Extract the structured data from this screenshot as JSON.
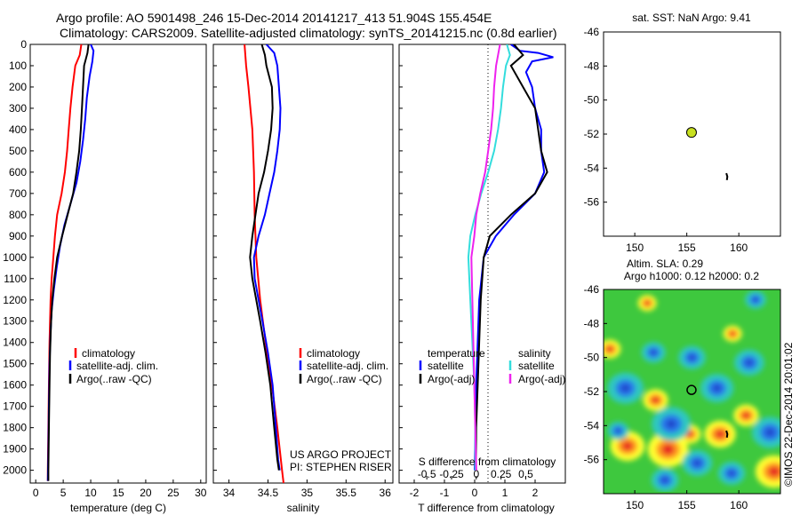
{
  "header": {
    "line1": "Argo profile: AO 5901498_246 15-Dec-2014 20141217_413 51.904S 155.454E",
    "line2": "Climatology: CARS2009. Satellite-adjusted climatology: synTS_20141215.nc (0.8d earlier)"
  },
  "credit": {
    "line1": "US ARGO PROJECT",
    "line2": "PI: STEPHEN RISER"
  },
  "watermark": "©IMOS 22-Dec-2014 20:01:02",
  "colors": {
    "red": "#ff0000",
    "blue": "#0000ff",
    "black": "#000000",
    "cyan": "#33dddd",
    "magenta": "#ee22ee",
    "green": "#3ec83e",
    "yellow": "#ffff33",
    "marker": "#c8e020"
  },
  "chart_data": [
    {
      "type": "line",
      "xlabel": "temperature (deg C)",
      "ylabel": "",
      "xlim": [
        -1,
        31
      ],
      "ylim": [
        2060,
        0
      ],
      "xticks": [
        "0",
        "5",
        "10",
        "15",
        "20",
        "25",
        "30"
      ],
      "yticks": [
        "0",
        "100",
        "200",
        "300",
        "400",
        "500",
        "600",
        "700",
        "800",
        "900",
        "1000",
        "1100",
        "1200",
        "1300",
        "1400",
        "1500",
        "1600",
        "1700",
        "1800",
        "1900",
        "2000"
      ],
      "legend": [
        "climatology",
        "satellite-adj. clim.",
        "Argo(..raw -QC)"
      ],
      "series": [
        {
          "name": "climatology",
          "color": "red",
          "points": [
            [
              8.3,
              0
            ],
            [
              8.0,
              50
            ],
            [
              7.2,
              100
            ],
            [
              6.7,
              200
            ],
            [
              6.3,
              300
            ],
            [
              6.0,
              400
            ],
            [
              5.7,
              500
            ],
            [
              5.3,
              600
            ],
            [
              4.7,
              700
            ],
            [
              3.9,
              800
            ],
            [
              3.5,
              900
            ],
            [
              3.2,
              1000
            ],
            [
              2.9,
              1100
            ],
            [
              2.7,
              1200
            ],
            [
              2.6,
              1300
            ],
            [
              2.5,
              1400
            ],
            [
              2.4,
              1600
            ],
            [
              2.3,
              1800
            ],
            [
              2.2,
              2000
            ],
            [
              2.2,
              2050
            ]
          ]
        },
        {
          "name": "satellite-adj. clim.",
          "color": "blue",
          "points": [
            [
              10.0,
              0
            ],
            [
              10.5,
              30
            ],
            [
              10.3,
              80
            ],
            [
              9.8,
              150
            ],
            [
              9.3,
              250
            ],
            [
              9.0,
              350
            ],
            [
              8.6,
              450
            ],
            [
              8.1,
              550
            ],
            [
              7.4,
              650
            ],
            [
              6.3,
              750
            ],
            [
              5.2,
              850
            ],
            [
              4.4,
              950
            ],
            [
              3.8,
              1050
            ],
            [
              3.3,
              1150
            ],
            [
              2.9,
              1250
            ],
            [
              2.7,
              1350
            ],
            [
              2.5,
              1500
            ],
            [
              2.4,
              1700
            ],
            [
              2.3,
              1900
            ],
            [
              2.2,
              2050
            ]
          ]
        },
        {
          "name": "Argo(..raw -QC)",
          "color": "black",
          "points": [
            [
              9.6,
              0
            ],
            [
              9.4,
              40
            ],
            [
              8.8,
              100
            ],
            [
              8.6,
              200
            ],
            [
              8.4,
              300
            ],
            [
              8.2,
              400
            ],
            [
              7.9,
              500
            ],
            [
              7.4,
              600
            ],
            [
              6.8,
              700
            ],
            [
              5.8,
              800
            ],
            [
              4.8,
              900
            ],
            [
              3.9,
              1000
            ],
            [
              3.4,
              1100
            ],
            [
              3.0,
              1200
            ],
            [
              2.8,
              1300
            ],
            [
              2.6,
              1450
            ],
            [
              2.5,
              1600
            ],
            [
              2.4,
              1800
            ],
            [
              2.3,
              2000
            ],
            [
              2.3,
              2050
            ]
          ]
        }
      ]
    },
    {
      "type": "line",
      "xlabel": "salinity",
      "ylabel": "",
      "xlim": [
        33.8,
        36.1
      ],
      "ylim": [
        2060,
        0
      ],
      "xticks": [
        "34",
        "34.5",
        "35",
        "35.5",
        "36"
      ],
      "legend": [
        "climatology",
        "satellite-adj. clim.",
        "Argo(..raw -QC)"
      ],
      "series": [
        {
          "name": "climatology",
          "color": "red",
          "points": [
            [
              34.2,
              0
            ],
            [
              34.22,
              100
            ],
            [
              34.25,
              200
            ],
            [
              34.3,
              400
            ],
            [
              34.32,
              600
            ],
            [
              34.33,
              800
            ],
            [
              34.34,
              900
            ],
            [
              34.35,
              1000
            ],
            [
              34.4,
              1200
            ],
            [
              34.47,
              1400
            ],
            [
              34.55,
              1600
            ],
            [
              34.62,
              1800
            ],
            [
              34.68,
              2000
            ],
            [
              34.7,
              2060
            ]
          ]
        },
        {
          "name": "satellite-adj. clim.",
          "color": "blue",
          "points": [
            [
              34.48,
              0
            ],
            [
              34.58,
              40
            ],
            [
              34.62,
              100
            ],
            [
              34.64,
              200
            ],
            [
              34.66,
              300
            ],
            [
              34.65,
              400
            ],
            [
              34.62,
              500
            ],
            [
              34.58,
              600
            ],
            [
              34.52,
              700
            ],
            [
              34.46,
              800
            ],
            [
              34.38,
              900
            ],
            [
              34.32,
              1000
            ],
            [
              34.33,
              1100
            ],
            [
              34.38,
              1200
            ],
            [
              34.43,
              1300
            ],
            [
              34.5,
              1450
            ],
            [
              34.56,
              1600
            ],
            [
              34.6,
              1800
            ],
            [
              34.63,
              1950
            ],
            [
              34.65,
              2000
            ]
          ]
        },
        {
          "name": "Argo(..raw -QC)",
          "color": "black",
          "points": [
            [
              34.42,
              0
            ],
            [
              34.46,
              50
            ],
            [
              34.48,
              100
            ],
            [
              34.55,
              200
            ],
            [
              34.56,
              300
            ],
            [
              34.54,
              400
            ],
            [
              34.5,
              500
            ],
            [
              34.45,
              600
            ],
            [
              34.38,
              700
            ],
            [
              34.34,
              800
            ],
            [
              34.3,
              900
            ],
            [
              34.27,
              1000
            ],
            [
              34.3,
              1100
            ],
            [
              34.35,
              1200
            ],
            [
              34.4,
              1300
            ],
            [
              34.47,
              1450
            ],
            [
              34.53,
              1600
            ],
            [
              34.58,
              1800
            ],
            [
              34.62,
              1950
            ],
            [
              34.64,
              2000
            ]
          ]
        }
      ]
    },
    {
      "type": "line",
      "xlabel": "T difference from climatology",
      "x2label": "S difference from climatology",
      "xlim": [
        -2.5,
        3.0
      ],
      "x2lim": [
        -0.78,
        0.9
      ],
      "ylim": [
        2060,
        0
      ],
      "xticks": [
        "-2",
        "-1",
        "0",
        "1",
        "2"
      ],
      "x2ticks": [
        "-0.5",
        "-0.25",
        "0",
        "0.25",
        "0.5"
      ],
      "legend_temperature_title": "temperature",
      "legend_salinity_title": "salinity",
      "legend_items": [
        "satellite",
        "Argo(-adj)",
        "satellite",
        "Argo(-adj)"
      ],
      "series": [
        {
          "name": "satellite",
          "group": "temperature",
          "color": "blue",
          "axis": "T",
          "points": [
            [
              1.2,
              0
            ],
            [
              1.5,
              30
            ],
            [
              2.1,
              40
            ],
            [
              2.6,
              60
            ],
            [
              1.9,
              80
            ],
            [
              1.7,
              130
            ],
            [
              1.9,
              200
            ],
            [
              2.0,
              300
            ],
            [
              2.2,
              400
            ],
            [
              2.2,
              500
            ],
            [
              2.3,
              600
            ],
            [
              2.0,
              700
            ],
            [
              1.3,
              800
            ],
            [
              0.7,
              900
            ],
            [
              0.3,
              1000
            ],
            [
              0.15,
              1200
            ],
            [
              0.1,
              1400
            ],
            [
              0.05,
              1600
            ],
            [
              0.03,
              1800
            ],
            [
              0.0,
              2000
            ]
          ]
        },
        {
          "name": "Argo(-adj)",
          "group": "temperature",
          "color": "black",
          "axis": "T",
          "points": [
            [
              1.3,
              0
            ],
            [
              1.6,
              50
            ],
            [
              1.2,
              100
            ],
            [
              1.6,
              200
            ],
            [
              2.0,
              300
            ],
            [
              2.1,
              400
            ],
            [
              2.2,
              500
            ],
            [
              2.4,
              600
            ],
            [
              2.0,
              700
            ],
            [
              1.2,
              800
            ],
            [
              0.5,
              900
            ],
            [
              0.3,
              1000
            ],
            [
              0.2,
              1200
            ],
            [
              0.15,
              1400
            ],
            [
              0.1,
              1600
            ],
            [
              0.05,
              1800
            ],
            [
              0.04,
              2000
            ]
          ]
        },
        {
          "name": "satellite",
          "group": "salinity",
          "color": "cyan",
          "axis": "S",
          "points": [
            [
              0.31,
              0
            ],
            [
              0.34,
              50
            ],
            [
              0.3,
              100
            ],
            [
              0.27,
              200
            ],
            [
              0.25,
              300
            ],
            [
              0.22,
              400
            ],
            [
              0.18,
              500
            ],
            [
              0.12,
              600
            ],
            [
              0.05,
              700
            ],
            [
              -0.01,
              800
            ],
            [
              -0.06,
              900
            ],
            [
              -0.08,
              1000
            ],
            [
              -0.06,
              1200
            ],
            [
              -0.04,
              1400
            ],
            [
              -0.02,
              1600
            ],
            [
              -0.01,
              1800
            ],
            [
              -0.01,
              2000
            ]
          ]
        },
        {
          "name": "Argo(-adj)",
          "group": "salinity",
          "color": "magenta",
          "axis": "S",
          "points": [
            [
              0.24,
              0
            ],
            [
              0.22,
              50
            ],
            [
              0.2,
              100
            ],
            [
              0.18,
              200
            ],
            [
              0.17,
              300
            ],
            [
              0.15,
              400
            ],
            [
              0.12,
              500
            ],
            [
              0.09,
              600
            ],
            [
              0.04,
              700
            ],
            [
              0.0,
              800
            ],
            [
              -0.02,
              900
            ],
            [
              -0.05,
              1000
            ],
            [
              -0.04,
              1200
            ],
            [
              -0.03,
              1400
            ],
            [
              -0.02,
              1600
            ],
            [
              -0.01,
              1800
            ],
            [
              0.0,
              2000
            ]
          ]
        }
      ]
    },
    {
      "type": "scatter",
      "title": "sat. SST: NaN Argo: 9.41",
      "xlim": [
        147,
        164
      ],
      "ylim": [
        -58,
        -46
      ],
      "xticks": [
        "150",
        "155",
        "160"
      ],
      "yticks": [
        "-46",
        "-48",
        "-50",
        "-52",
        "-54",
        "-56"
      ],
      "float_position": [
        155.454,
        -51.904
      ],
      "trajectory": [
        [
          158.8,
          -54.3
        ],
        [
          158.9,
          -54.5
        ],
        [
          158.85,
          -54.7
        ]
      ]
    },
    {
      "type": "heatmap",
      "title_line1": "Altim. SLA: 0.29",
      "title_line2": "Argo h1000: 0.12 h2000: 0.2",
      "xlim": [
        147,
        164
      ],
      "ylim": [
        -58,
        -46
      ],
      "xticks": [
        "150",
        "155",
        "160"
      ],
      "yticks": [
        "-46",
        "-48",
        "-50",
        "-52",
        "-54",
        "-56"
      ],
      "float_position": [
        155.454,
        -51.904
      ],
      "highs": [
        [
          153.2,
          -55.4,
          1.3
        ],
        [
          149.3,
          -55.2,
          1.1
        ],
        [
          158.2,
          -54.5,
          1.0
        ],
        [
          163.4,
          -56.7,
          1.2
        ],
        [
          152.0,
          -52.5,
          0.8
        ],
        [
          147.6,
          -49.5,
          0.7
        ],
        [
          160.7,
          -53.4,
          0.8
        ],
        [
          155.3,
          -54.5,
          0.7
        ],
        [
          159.4,
          -48.6,
          0.6
        ],
        [
          151.2,
          -46.8,
          0.6
        ]
      ],
      "lows": [
        [
          149.1,
          -51.8,
          1.2
        ],
        [
          153.5,
          -53.9,
          1.3
        ],
        [
          163.0,
          -54.4,
          1.2
        ],
        [
          156.0,
          -56.2,
          1.0
        ],
        [
          157.9,
          -51.8,
          1.1
        ],
        [
          155.5,
          -50.0,
          0.9
        ],
        [
          161.0,
          -50.3,
          1.0
        ],
        [
          151.8,
          -49.7,
          0.8
        ],
        [
          152.9,
          -57.2,
          0.9
        ],
        [
          159.3,
          -56.8,
          0.9
        ],
        [
          148.4,
          -54.3,
          0.7
        ],
        [
          161.6,
          -46.6,
          0.7
        ]
      ]
    }
  ]
}
